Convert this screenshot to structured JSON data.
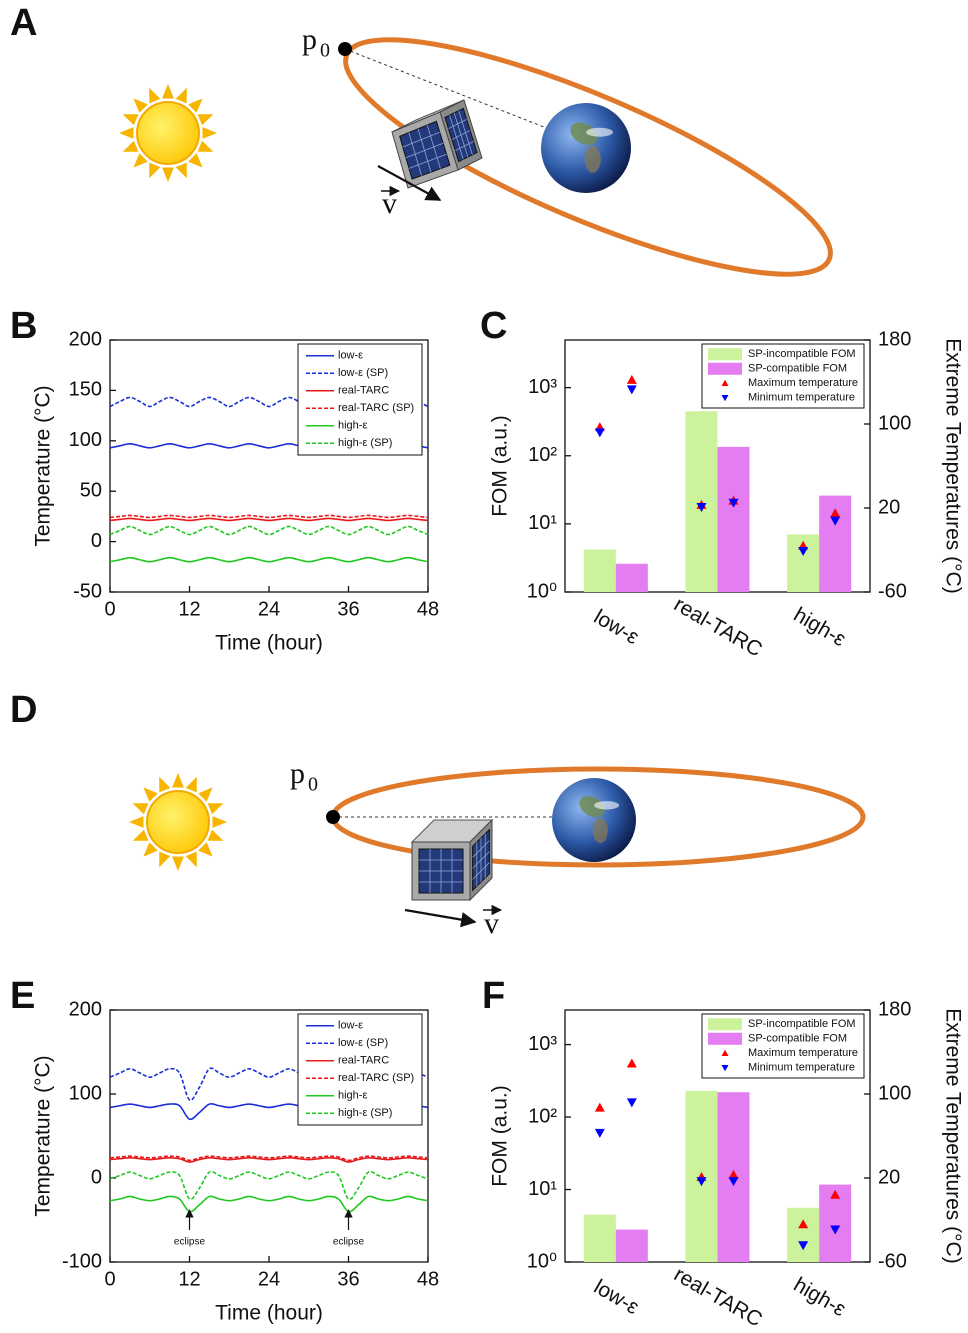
{
  "diagrams": [
    {
      "label": "A",
      "point": "p",
      "point_subscript": "0",
      "velocity": "v"
    },
    {
      "label": "D",
      "point": "p",
      "point_subscript": "0",
      "velocity": "v"
    }
  ],
  "chart_data": [
    {
      "type": "line",
      "label": "B",
      "xlabel": "Time (hour)",
      "ylabel": "Temperature (°C)",
      "xlim": [
        0,
        48
      ],
      "xticks": [
        0,
        12,
        24,
        36,
        48
      ],
      "ylim": [
        -50,
        200
      ],
      "yticks": [
        -50,
        0,
        50,
        100,
        150,
        200
      ],
      "legend": "upper right",
      "x": [
        0,
        1.5,
        3,
        4.5,
        6,
        7.5,
        9,
        10.5,
        12,
        13.5,
        15,
        16.5,
        18,
        19.5,
        21,
        22.5,
        24,
        25.5,
        27,
        28.5,
        30,
        31.5,
        33,
        34.5,
        36,
        37.5,
        39,
        40.5,
        42,
        43.5,
        45,
        46.5,
        48
      ],
      "series": [
        {
          "name": "low-ε",
          "color": "#1a2fd6",
          "dash": false,
          "values": [
            93,
            95,
            97,
            95,
            93,
            95,
            97,
            95,
            93,
            95,
            97,
            95,
            93,
            95,
            97,
            95,
            93,
            95,
            97,
            95,
            93,
            95,
            97,
            95,
            93,
            95,
            97,
            95,
            93,
            95,
            97,
            95,
            93
          ]
        },
        {
          "name": "low-ε (SP)",
          "color": "#1a2fd6",
          "dash": true,
          "values": [
            134,
            139,
            143,
            139,
            134,
            139,
            143,
            139,
            134,
            139,
            143,
            139,
            134,
            139,
            143,
            139,
            134,
            139,
            143,
            139,
            134,
            139,
            143,
            139,
            134,
            139,
            143,
            139,
            134,
            139,
            143,
            139,
            134
          ]
        },
        {
          "name": "real-TARC",
          "color": "#e81818",
          "dash": false,
          "values": [
            21,
            22,
            23,
            22,
            21,
            22,
            23,
            22,
            21,
            22,
            23,
            22,
            21,
            22,
            23,
            22,
            21,
            22,
            23,
            22,
            21,
            22,
            23,
            22,
            21,
            22,
            23,
            22,
            21,
            22,
            23,
            22,
            21
          ]
        },
        {
          "name": "real-TARC (SP)",
          "color": "#e81818",
          "dash": true,
          "values": [
            24,
            25,
            26,
            25,
            24,
            25,
            26,
            25,
            24,
            25,
            26,
            25,
            24,
            25,
            26,
            25,
            24,
            25,
            26,
            25,
            24,
            25,
            26,
            25,
            24,
            25,
            26,
            25,
            24,
            25,
            26,
            25,
            24
          ]
        },
        {
          "name": "high-ε",
          "color": "#1ec81e",
          "dash": false,
          "values": [
            -20,
            -18,
            -16,
            -18,
            -20,
            -18,
            -16,
            -18,
            -20,
            -18,
            -16,
            -18,
            -20,
            -18,
            -16,
            -18,
            -20,
            -18,
            -16,
            -18,
            -20,
            -18,
            -16,
            -18,
            -20,
            -18,
            -16,
            -18,
            -20,
            -18,
            -16,
            -18,
            -20
          ]
        },
        {
          "name": "high-ε (SP)",
          "color": "#1ec81e",
          "dash": true,
          "values": [
            7,
            11,
            15,
            11,
            7,
            11,
            15,
            11,
            7,
            11,
            15,
            11,
            7,
            11,
            15,
            11,
            7,
            11,
            15,
            11,
            7,
            11,
            15,
            11,
            7,
            11,
            15,
            11,
            7,
            11,
            15,
            11,
            7
          ]
        }
      ]
    },
    {
      "type": "bar",
      "label": "C",
      "ylabel": "FOM (a.u.)",
      "y2label": "Extreme Temperatures (°C)",
      "categories": [
        "low-ε",
        "real-TARC",
        "high-ε"
      ],
      "yscale": "log",
      "ylim": [
        1,
        5000
      ],
      "yticks": [
        {
          "value": 1,
          "label": "10⁰"
        },
        {
          "value": 10,
          "label": "10¹"
        },
        {
          "value": 100,
          "label": "10²"
        },
        {
          "value": 1000,
          "label": "10³"
        }
      ],
      "y2lim": [
        -60,
        180
      ],
      "y2ticks": [
        -60,
        20,
        100,
        180
      ],
      "legend": "upper right",
      "series": [
        {
          "name": "SP-incompatible FOM",
          "type": "bar",
          "color": "#ccf29c",
          "values": [
            4.2,
            450,
            7
          ]
        },
        {
          "name": "SP-compatible FOM",
          "type": "bar",
          "color": "#e47cf2",
          "values": [
            2.6,
            135,
            26
          ]
        },
        {
          "name": "Maximum temperature",
          "type": "scatter",
          "marker": "triangle-up",
          "axis": "y2",
          "color": "#ff0000",
          "values": [
            [
              97,
              142
            ],
            [
              23,
              27
            ],
            [
              -16,
              15
            ]
          ]
        },
        {
          "name": "Minimum temperature",
          "type": "scatter",
          "marker": "triangle-down",
          "axis": "y2",
          "color": "#0000ff",
          "values": [
            [
              92,
              133
            ],
            [
              21,
              25
            ],
            [
              -21,
              8
            ]
          ]
        }
      ]
    },
    {
      "type": "line",
      "label": "E",
      "xlabel": "Time (hour)",
      "ylabel": "Temperature (°C)",
      "xlim": [
        0,
        48
      ],
      "xticks": [
        0,
        12,
        24,
        36,
        48
      ],
      "ylim": [
        -100,
        200
      ],
      "yticks": [
        -100,
        0,
        100,
        200
      ],
      "legend": "upper right",
      "annotations": [
        {
          "text": "eclipse",
          "x": 12
        },
        {
          "text": "eclipse",
          "x": 36
        }
      ],
      "x": [
        0,
        1.5,
        3,
        4.5,
        6,
        7.5,
        9,
        10.5,
        12,
        13.5,
        15,
        16.5,
        18,
        19.5,
        21,
        22.5,
        24,
        25.5,
        27,
        28.5,
        30,
        31.5,
        33,
        34.5,
        36,
        37.5,
        39,
        40.5,
        42,
        43.5,
        45,
        46.5,
        48
      ],
      "series": [
        {
          "name": "low-ε",
          "color": "#1a2fd6",
          "dash": false,
          "values": [
            84,
            86,
            88,
            86,
            84,
            86,
            88,
            86,
            70,
            78,
            88,
            86,
            84,
            86,
            88,
            86,
            84,
            86,
            88,
            86,
            84,
            86,
            88,
            86,
            70,
            78,
            88,
            86,
            84,
            86,
            88,
            86,
            84
          ]
        },
        {
          "name": "low-ε (SP)",
          "color": "#1a2fd6",
          "dash": true,
          "values": [
            120,
            125,
            130,
            125,
            120,
            125,
            130,
            125,
            93,
            108,
            130,
            125,
            120,
            125,
            130,
            125,
            120,
            125,
            130,
            125,
            120,
            125,
            130,
            125,
            108,
            116,
            130,
            125,
            120,
            125,
            130,
            125,
            120
          ]
        },
        {
          "name": "real-TARC",
          "color": "#e81818",
          "dash": false,
          "values": [
            22,
            23,
            24,
            23,
            22,
            23,
            24,
            23,
            19,
            22,
            24,
            23,
            22,
            23,
            24,
            23,
            22,
            23,
            24,
            23,
            22,
            23,
            24,
            23,
            19,
            22,
            24,
            23,
            22,
            23,
            24,
            23,
            22
          ]
        },
        {
          "name": "real-TARC (SP)",
          "color": "#e81818",
          "dash": true,
          "values": [
            24,
            25,
            26,
            25,
            24,
            25,
            26,
            25,
            21,
            24,
            26,
            25,
            24,
            25,
            26,
            25,
            24,
            25,
            26,
            25,
            24,
            25,
            26,
            25,
            21,
            24,
            26,
            25,
            24,
            25,
            26,
            25,
            24
          ]
        },
        {
          "name": "high-ε",
          "color": "#1ec81e",
          "dash": false,
          "values": [
            -27,
            -25,
            -22,
            -25,
            -27,
            -25,
            -22,
            -25,
            -40,
            -32,
            -22,
            -25,
            -27,
            -25,
            -22,
            -25,
            -27,
            -25,
            -22,
            -25,
            -27,
            -25,
            -22,
            -25,
            -40,
            -32,
            -22,
            -25,
            -27,
            -25,
            -22,
            -25,
            -27
          ]
        },
        {
          "name": "high-ε (SP)",
          "color": "#1ec81e",
          "dash": true,
          "values": [
            -1,
            3,
            7,
            3,
            -1,
            3,
            7,
            3,
            -25,
            -12,
            7,
            3,
            -1,
            3,
            7,
            3,
            -1,
            3,
            7,
            3,
            -1,
            3,
            7,
            3,
            -25,
            -12,
            7,
            3,
            -1,
            3,
            7,
            3,
            -1
          ]
        }
      ]
    },
    {
      "type": "bar",
      "label": "F",
      "ylabel": "FOM (a.u.)",
      "y2label": "Extreme Temperatures (°C)",
      "categories": [
        "low-ε",
        "real-TARC",
        "high-ε"
      ],
      "yscale": "log",
      "ylim": [
        1,
        3000
      ],
      "yticks": [
        {
          "value": 1,
          "label": "10⁰"
        },
        {
          "value": 10,
          "label": "10¹"
        },
        {
          "value": 100,
          "label": "10²"
        },
        {
          "value": 1000,
          "label": "10³"
        }
      ],
      "y2lim": [
        -60,
        180
      ],
      "y2ticks": [
        -60,
        20,
        100,
        180
      ],
      "legend": "upper right",
      "series": [
        {
          "name": "SP-incompatible FOM",
          "type": "bar",
          "color": "#ccf29c",
          "values": [
            4.5,
            230,
            5.6
          ]
        },
        {
          "name": "SP-compatible FOM",
          "type": "bar",
          "color": "#e47cf2",
          "values": [
            2.8,
            220,
            11.7
          ]
        },
        {
          "name": "Maximum temperature",
          "type": "scatter",
          "marker": "triangle-up",
          "axis": "y2",
          "color": "#ff0000",
          "values": [
            [
              87,
              129
            ],
            [
              21,
              23
            ],
            [
              -24,
              4
            ]
          ]
        },
        {
          "name": "Minimum temperature",
          "type": "scatter",
          "marker": "triangle-down",
          "axis": "y2",
          "color": "#0000ff",
          "values": [
            [
              63,
              92
            ],
            [
              17,
              17
            ],
            [
              -44,
              -29
            ]
          ]
        }
      ]
    }
  ]
}
